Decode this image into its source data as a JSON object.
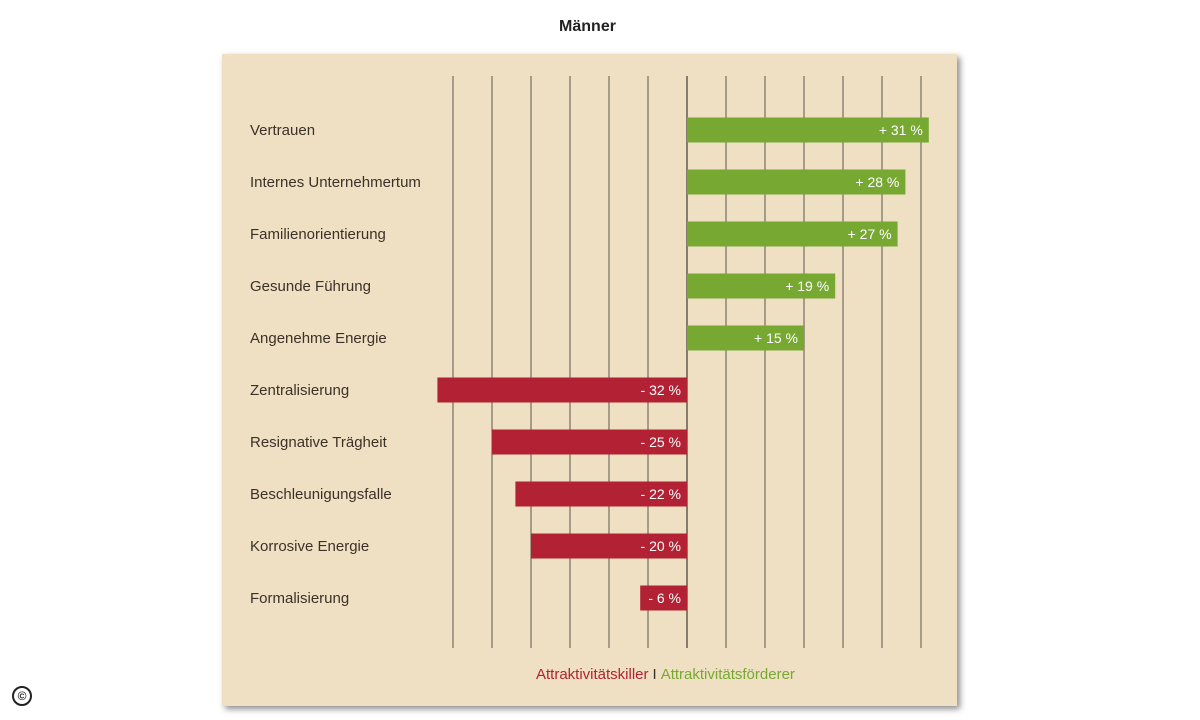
{
  "chart_data": {
    "type": "bar",
    "title": "Männer",
    "orientation": "horizontal",
    "categories": [
      "Vertrauen",
      "Internes Unternehmertum",
      "Familienorientierung",
      "Gesunde Führung",
      "Angenehme Energie",
      "Zentralisierung",
      "Resignative Trägheit",
      "Beschleunigungsfalle",
      "Korrosive Energie",
      "Formalisierung"
    ],
    "values": [
      31,
      28,
      27,
      19,
      15,
      -32,
      -25,
      -22,
      -20,
      -6
    ],
    "value_labels": [
      "+ 31 %",
      "+ 28 %",
      "+ 27 %",
      "+ 19 %",
      "+ 15 %",
      "- 32 %",
      "- 25 %",
      "- 22 %",
      "- 20 %",
      "- 6 %"
    ],
    "xlim": [
      -30,
      30
    ],
    "grid": true,
    "legend": {
      "negative": "Attraktivitätskiller",
      "separator": "I",
      "positive": "Attraktivitätsförderer",
      "placement": "bottom"
    },
    "colors": {
      "positive": "#77a832",
      "negative": "#b22234",
      "background": "#efe0c3",
      "grid": "#6b6258"
    }
  },
  "footer": {
    "copyright": "©"
  }
}
